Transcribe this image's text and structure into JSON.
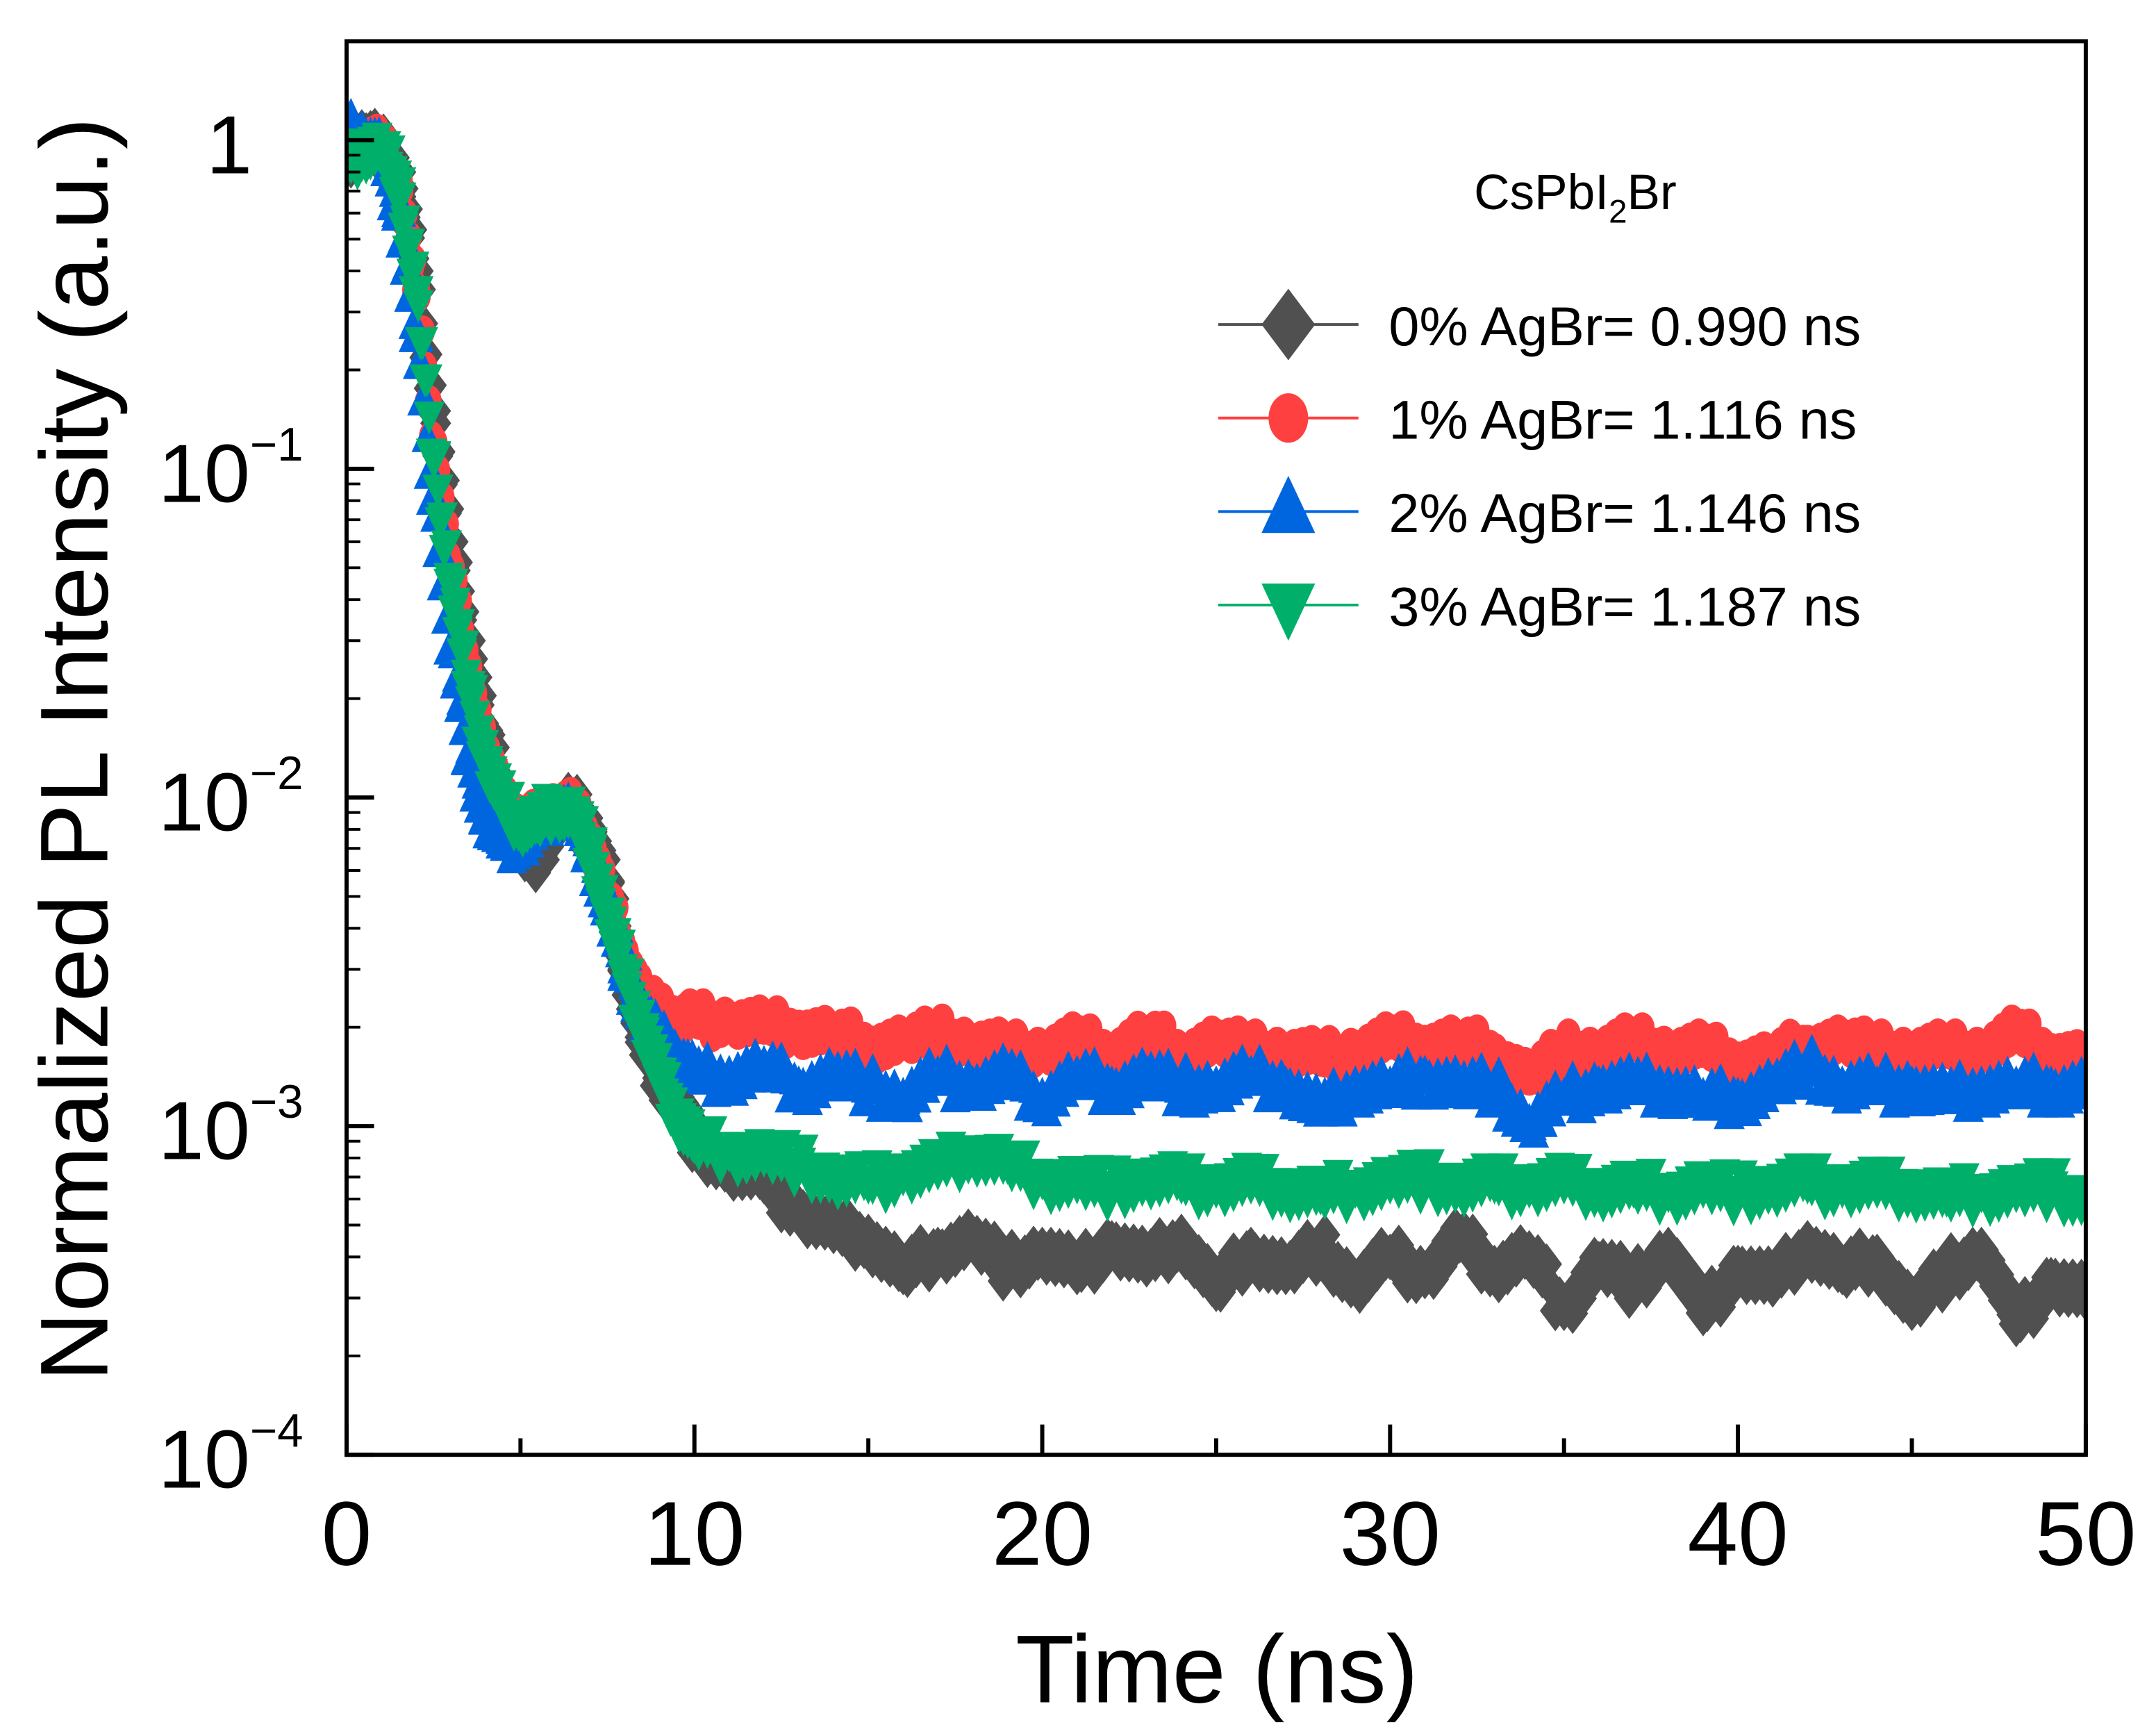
{
  "chart_data": {
    "type": "scatter",
    "title": "",
    "xlabel": "Time (ns)",
    "ylabel": "Normalized PL Intensity (a.u.)",
    "xlim": [
      0,
      50
    ],
    "ylim": [
      0.0001,
      2
    ],
    "yscale": "log",
    "grid": false,
    "legend_placement": "top-right",
    "legend_title": "CsPbI",
    "legend_title_sub": "2",
    "legend_title_end": "Br",
    "xticks": [
      0,
      10,
      20,
      30,
      40,
      50
    ],
    "xtick_labels": [
      "0",
      "10",
      "20",
      "30",
      "40",
      "50"
    ],
    "yticks": [
      1,
      0.1,
      0.01,
      0.001,
      0.0001
    ],
    "ytick_labels": [
      {
        "base": "1",
        "exp": ""
      },
      {
        "base": "10",
        "exp": "−1"
      },
      {
        "base": "10",
        "exp": "−2"
      },
      {
        "base": "10",
        "exp": "−3"
      },
      {
        "base": "10",
        "exp": "−4"
      }
    ],
    "series": [
      {
        "name": "0% AgBr= 0.990 ns",
        "color": "#505050",
        "marker": "diamond",
        "x": [
          0,
          0.5,
          1,
          1.5,
          2,
          2.5,
          3,
          3.5,
          4,
          4.5,
          5,
          5.5,
          6,
          6.5,
          7,
          7.5,
          8,
          8.5,
          9,
          9.5,
          10,
          11,
          12,
          13,
          14,
          15,
          16,
          17,
          18,
          19,
          20,
          21,
          22,
          23,
          24,
          25,
          26,
          27,
          28,
          29,
          30,
          31,
          32,
          33,
          34,
          35,
          36,
          37,
          38,
          39,
          40,
          41,
          42,
          43,
          44,
          45,
          46,
          47,
          48,
          49,
          50
        ],
        "y": [
          0.9,
          1.0,
          0.95,
          0.8,
          0.4,
          0.15,
          0.06,
          0.03,
          0.016,
          0.01,
          0.0068,
          0.0066,
          0.0085,
          0.0095,
          0.008,
          0.0055,
          0.003,
          0.0018,
          0.0014,
          0.0012,
          0.0009,
          0.00075,
          0.00068,
          0.00055,
          0.00048,
          0.00046,
          0.00036,
          0.00042,
          0.00045,
          0.00037,
          0.00042,
          0.00036,
          0.00044,
          0.00038,
          0.00046,
          0.00032,
          0.00042,
          0.00036,
          0.00043,
          0.00033,
          0.0004,
          0.00035,
          0.00045,
          0.00037,
          0.00041,
          0.00028,
          0.00038,
          0.00033,
          0.00042,
          0.00027,
          0.00037,
          0.00033,
          0.00044,
          0.00036,
          0.0004,
          0.00028,
          0.00036,
          0.00042,
          0.00025,
          0.00034,
          0.0003
        ]
      },
      {
        "name": "1% AgBr= 1.116 ns",
        "color": "#ff4040",
        "marker": "circle",
        "x": [
          0,
          0.5,
          1,
          1.5,
          2,
          2.5,
          3,
          3.5,
          4,
          4.5,
          5,
          5.5,
          6,
          6.5,
          7,
          7.5,
          8,
          8.5,
          9,
          9.5,
          10,
          11,
          12,
          13,
          14,
          15,
          16,
          17,
          18,
          19,
          20,
          21,
          22,
          23,
          24,
          25,
          26,
          27,
          28,
          29,
          30,
          31,
          32,
          33,
          34,
          35,
          36,
          37,
          38,
          39,
          40,
          41,
          42,
          43,
          44,
          45,
          46,
          47,
          48,
          49,
          50
        ],
        "y": [
          0.95,
          1.0,
          0.95,
          0.75,
          0.35,
          0.12,
          0.05,
          0.025,
          0.014,
          0.0095,
          0.0085,
          0.0085,
          0.0095,
          0.0092,
          0.0075,
          0.005,
          0.0034,
          0.0025,
          0.0022,
          0.0021,
          0.0021,
          0.0021,
          0.002,
          0.002,
          0.0019,
          0.0018,
          0.0018,
          0.0019,
          0.0018,
          0.0017,
          0.0017,
          0.0018,
          0.0017,
          0.0019,
          0.0017,
          0.0018,
          0.0017,
          0.0017,
          0.0016,
          0.0017,
          0.0018,
          0.0018,
          0.0018,
          0.0017,
          0.0014,
          0.0017,
          0.0017,
          0.0018,
          0.0017,
          0.0017,
          0.0016,
          0.0016,
          0.0018,
          0.0018,
          0.0017,
          0.0017,
          0.0017,
          0.0017,
          0.0019,
          0.0017,
          0.0016
        ]
      },
      {
        "name": "2% AgBr= 1.146 ns",
        "color": "#0066e0",
        "marker": "triangle-up",
        "x": [
          0,
          0.5,
          1,
          1.5,
          2,
          2.5,
          3,
          3.5,
          4,
          4.5,
          5,
          5.5,
          6,
          6.5,
          7,
          7.5,
          8,
          8.5,
          9,
          9.5,
          10,
          11,
          12,
          13,
          14,
          15,
          16,
          17,
          18,
          19,
          20,
          21,
          22,
          23,
          24,
          25,
          26,
          27,
          28,
          29,
          30,
          31,
          32,
          33,
          34,
          35,
          36,
          37,
          38,
          39,
          40,
          41,
          42,
          43,
          44,
          45,
          46,
          47,
          48,
          49,
          50
        ],
        "y": [
          1.05,
          1.0,
          0.9,
          0.6,
          0.25,
          0.08,
          0.028,
          0.013,
          0.0085,
          0.0072,
          0.0072,
          0.008,
          0.0092,
          0.0088,
          0.0068,
          0.0045,
          0.003,
          0.0022,
          0.0018,
          0.0016,
          0.0014,
          0.0014,
          0.0015,
          0.0013,
          0.0014,
          0.0013,
          0.0012,
          0.0014,
          0.0013,
          0.0014,
          0.0012,
          0.0014,
          0.0013,
          0.0014,
          0.0013,
          0.0013,
          0.0014,
          0.0013,
          0.0011,
          0.0013,
          0.0013,
          0.0014,
          0.0013,
          0.0013,
          0.001,
          0.0012,
          0.0013,
          0.0013,
          0.0013,
          0.0012,
          0.0012,
          0.0013,
          0.0015,
          0.0013,
          0.0013,
          0.0013,
          0.0012,
          0.0013,
          0.0013,
          0.0013,
          0.0013
        ]
      },
      {
        "name": "3% AgBr= 1.187 ns",
        "color": "#00b06a",
        "marker": "triangle-down",
        "x": [
          0,
          0.5,
          1,
          1.5,
          2,
          2.5,
          3,
          3.5,
          4,
          4.5,
          5,
          5.5,
          6,
          6.5,
          7,
          7.5,
          8,
          8.5,
          9,
          9.5,
          10,
          11,
          12,
          13,
          14,
          15,
          16,
          17,
          18,
          19,
          20,
          21,
          22,
          23,
          24,
          25,
          26,
          27,
          28,
          29,
          30,
          31,
          32,
          33,
          34,
          35,
          36,
          37,
          38,
          39,
          40,
          41,
          42,
          43,
          44,
          45,
          46,
          47,
          48,
          49,
          50
        ],
        "y": [
          0.85,
          0.95,
          0.95,
          0.75,
          0.35,
          0.11,
          0.045,
          0.022,
          0.013,
          0.0095,
          0.0085,
          0.0085,
          0.0095,
          0.009,
          0.007,
          0.0045,
          0.0029,
          0.002,
          0.0014,
          0.0011,
          0.0009,
          0.00085,
          0.00082,
          0.00078,
          0.0007,
          0.00068,
          0.00072,
          0.00075,
          0.00085,
          0.00078,
          0.0007,
          0.00068,
          0.00066,
          0.0007,
          0.00068,
          0.00066,
          0.00068,
          0.00066,
          0.00063,
          0.00066,
          0.00068,
          0.0007,
          0.00066,
          0.00068,
          0.00066,
          0.00068,
          0.00066,
          0.00066,
          0.00064,
          0.00066,
          0.00064,
          0.00066,
          0.00068,
          0.00066,
          0.00066,
          0.00066,
          0.00062,
          0.00064,
          0.00064,
          0.00066,
          0.0006
        ]
      }
    ]
  }
}
